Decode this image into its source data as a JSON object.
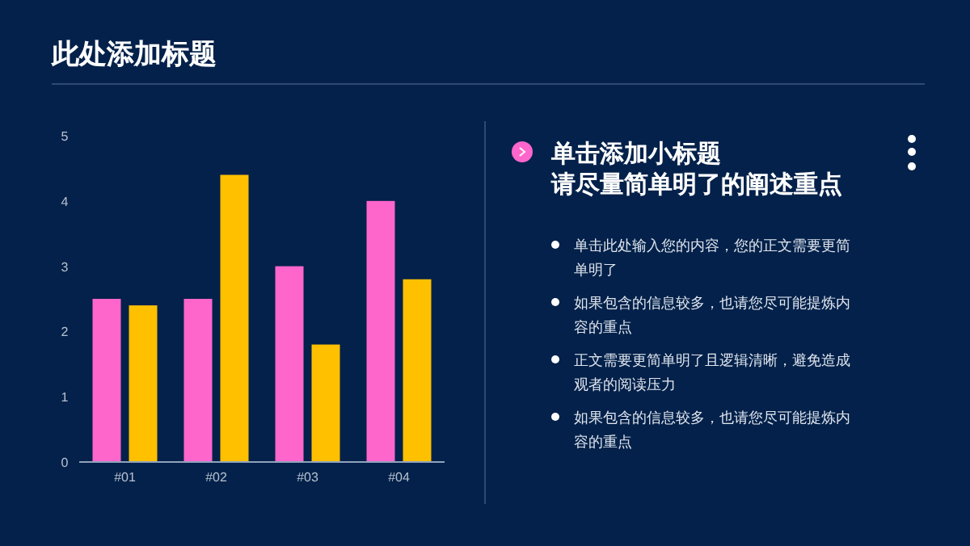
{
  "chart_data": [
    {
      "type": "bar",
      "title": "此处添加标题",
      "categories": [
        "#01",
        "#02",
        "#03",
        "#04"
      ],
      "series": [
        {
          "color": "#ff66cc",
          "values": [
            2.5,
            2.5,
            3,
            4
          ]
        },
        {
          "color": "#ffc000",
          "values": [
            2.4,
            4.4,
            1.8,
            2.8
          ]
        }
      ],
      "ylim": [
        0,
        5
      ],
      "yticks": [
        0,
        1,
        2,
        3,
        4,
        5
      ],
      "grid": false
    },
    {
      "type": "other",
      "title": "单击添加小标题",
      "subtitle": "请尽量简单明了的阐述重点",
      "annotations": [
        "单击此处输入您的内容，您的正文需要更简单明了",
        "如果包含的信息较多，也请您尽可能提炼内容的重点",
        "正文需要更简单明了且逻辑清晰，避免造成观者的阅读压力",
        "如果包含的信息较多，也请您尽可能提炼内容的重点"
      ]
    }
  ]
}
